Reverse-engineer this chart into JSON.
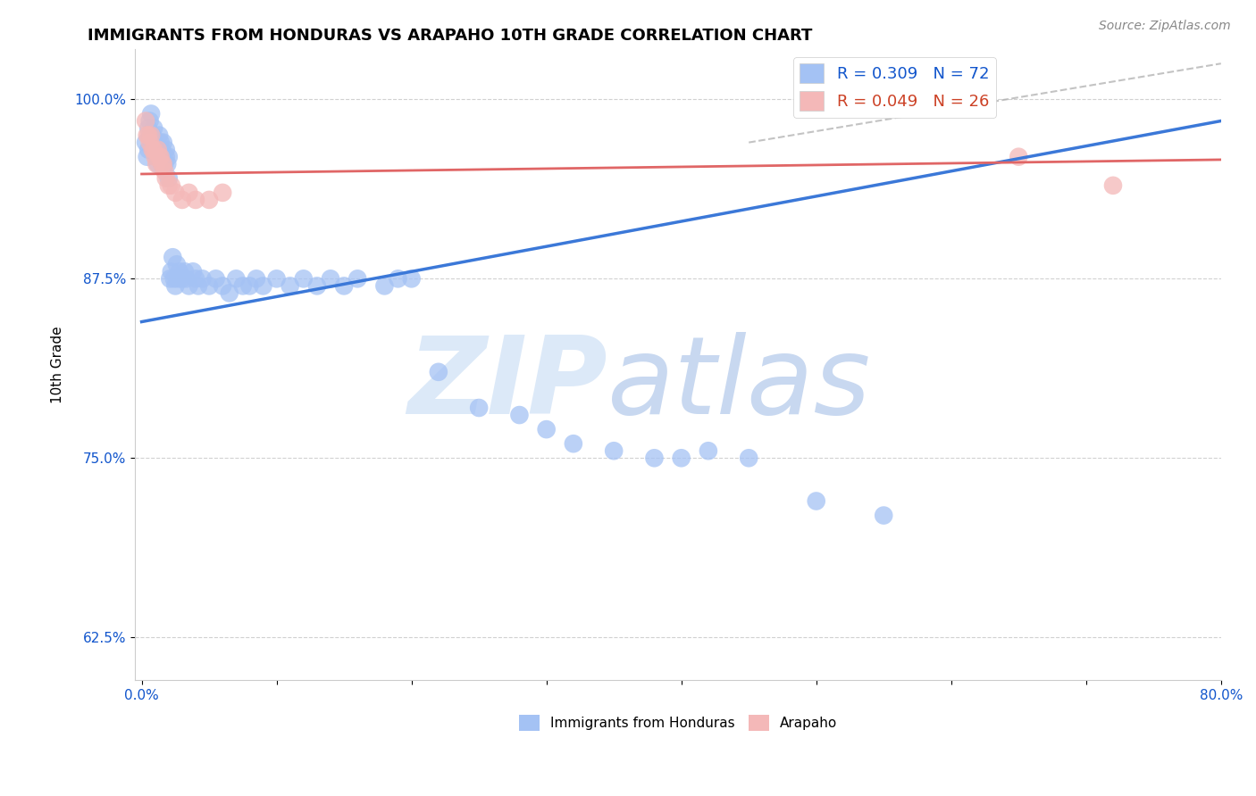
{
  "title": "IMMIGRANTS FROM HONDURAS VS ARAPAHO 10TH GRADE CORRELATION CHART",
  "source_text": "Source: ZipAtlas.com",
  "ylabel": "10th Grade",
  "x_tick_positions": [
    0.0,
    0.1,
    0.2,
    0.3,
    0.4,
    0.5,
    0.6,
    0.7,
    0.8
  ],
  "x_tick_labels": [
    "0.0%",
    "",
    "",
    "",
    "",
    "",
    "",
    "",
    "80.0%"
  ],
  "y_ticks": [
    0.625,
    0.75,
    0.875,
    1.0
  ],
  "y_tick_labels": [
    "62.5%",
    "75.0%",
    "87.5%",
    "100.0%"
  ],
  "xlim": [
    -0.005,
    0.8
  ],
  "ylim": [
    0.595,
    1.035
  ],
  "blue_color": "#a4c2f4",
  "pink_color": "#f4b8b8",
  "blue_line_color": "#3b78d8",
  "pink_line_color": "#e06666",
  "legend_blue_text_color": "#1155cc",
  "legend_pink_text_color": "#cc4125",
  "legend_blue_label": "R = 0.309   N = 72",
  "legend_pink_label": "R = 0.049   N = 26",
  "watermark_zip": "ZIP",
  "watermark_atlas": "atlas",
  "watermark_color": "#dce9f8",
  "blue_scatter_x": [
    0.003,
    0.004,
    0.005,
    0.005,
    0.006,
    0.007,
    0.008,
    0.009,
    0.009,
    0.01,
    0.011,
    0.012,
    0.013,
    0.013,
    0.014,
    0.015,
    0.015,
    0.016,
    0.016,
    0.017,
    0.018,
    0.018,
    0.019,
    0.02,
    0.02,
    0.021,
    0.022,
    0.023,
    0.024,
    0.025,
    0.026,
    0.027,
    0.028,
    0.03,
    0.032,
    0.033,
    0.035,
    0.038,
    0.04,
    0.042,
    0.045,
    0.05,
    0.055,
    0.06,
    0.065,
    0.07,
    0.075,
    0.08,
    0.085,
    0.09,
    0.1,
    0.11,
    0.12,
    0.13,
    0.14,
    0.15,
    0.16,
    0.18,
    0.19,
    0.2,
    0.22,
    0.25,
    0.28,
    0.3,
    0.32,
    0.35,
    0.38,
    0.4,
    0.42,
    0.45,
    0.5,
    0.55
  ],
  "blue_scatter_y": [
    0.97,
    0.96,
    0.98,
    0.965,
    0.985,
    0.99,
    0.975,
    0.98,
    0.97,
    0.965,
    0.96,
    0.955,
    0.975,
    0.965,
    0.97,
    0.955,
    0.965,
    0.96,
    0.97,
    0.955,
    0.96,
    0.965,
    0.955,
    0.96,
    0.945,
    0.875,
    0.88,
    0.89,
    0.875,
    0.87,
    0.885,
    0.875,
    0.88,
    0.875,
    0.88,
    0.875,
    0.87,
    0.88,
    0.875,
    0.87,
    0.875,
    0.87,
    0.875,
    0.87,
    0.865,
    0.875,
    0.87,
    0.87,
    0.875,
    0.87,
    0.875,
    0.87,
    0.875,
    0.87,
    0.875,
    0.87,
    0.875,
    0.87,
    0.875,
    0.875,
    0.81,
    0.785,
    0.78,
    0.77,
    0.76,
    0.755,
    0.75,
    0.75,
    0.755,
    0.75,
    0.72,
    0.71
  ],
  "pink_scatter_x": [
    0.003,
    0.004,
    0.005,
    0.006,
    0.007,
    0.008,
    0.009,
    0.01,
    0.011,
    0.012,
    0.013,
    0.014,
    0.015,
    0.016,
    0.017,
    0.018,
    0.02,
    0.022,
    0.025,
    0.03,
    0.035,
    0.04,
    0.05,
    0.06,
    0.65,
    0.72
  ],
  "pink_scatter_y": [
    0.985,
    0.975,
    0.975,
    0.97,
    0.975,
    0.965,
    0.965,
    0.96,
    0.955,
    0.965,
    0.96,
    0.96,
    0.955,
    0.955,
    0.95,
    0.945,
    0.94,
    0.94,
    0.935,
    0.93,
    0.935,
    0.93,
    0.93,
    0.935,
    0.96,
    0.94
  ],
  "blue_trendline_x": [
    0.0,
    0.8
  ],
  "blue_trendline_y": [
    0.845,
    0.985
  ],
  "pink_trendline_x": [
    0.0,
    0.8
  ],
  "pink_trendline_y": [
    0.948,
    0.958
  ],
  "dashed_line_x": [
    0.45,
    0.8
  ],
  "dashed_line_y": [
    0.97,
    1.025
  ],
  "background_color": "#ffffff",
  "grid_color": "#cccccc",
  "title_fontsize": 13,
  "axis_label_fontsize": 11,
  "tick_fontsize": 11,
  "tick_color": "#1155cc"
}
